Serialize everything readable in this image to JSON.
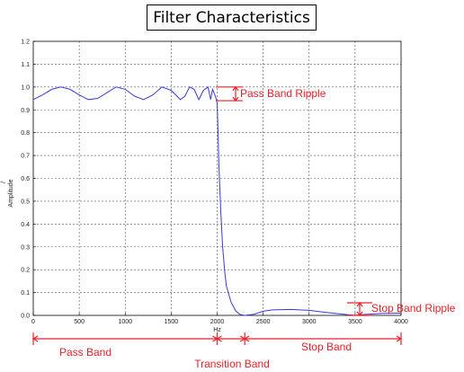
{
  "chart_data": {
    "type": "line",
    "title": "Filter Characteristics",
    "xlabel": "Hz",
    "ylabel": "Amplitude",
    "ylabel_symbol": "/",
    "xlim": [
      0,
      4000
    ],
    "ylim": [
      0,
      1.2
    ],
    "x_ticks": [
      0,
      500,
      1000,
      1500,
      2000,
      2500,
      3000,
      3500,
      4000
    ],
    "y_ticks": [
      "0.0",
      "0.1",
      "0.2",
      "0.3",
      "0.4",
      "0.5",
      "0.6",
      "0.7",
      "0.8",
      "0.9",
      "1.0",
      "1.1",
      "1.2"
    ],
    "grid": true,
    "line_color": "#3b3bd6",
    "annotation_color": "#e8202a",
    "series": [
      {
        "x": [
          0,
          100,
          200,
          300,
          400,
          500,
          600,
          700,
          800,
          900,
          1000,
          1100,
          1200,
          1300,
          1400,
          1500,
          1600,
          1650,
          1700,
          1750,
          1800,
          1850,
          1900,
          1930,
          1950,
          1980,
          2000,
          2010,
          2020,
          2040,
          2060,
          2080,
          2100,
          2150,
          2200,
          2250,
          2300,
          2400,
          2500,
          2600,
          2800,
          3000,
          3200,
          3400,
          3500,
          3600,
          3800,
          4000
        ],
        "y": [
          0.945,
          0.965,
          0.99,
          1.0,
          0.99,
          0.965,
          0.945,
          0.95,
          0.975,
          1.0,
          0.99,
          0.96,
          0.945,
          0.965,
          1.0,
          0.985,
          0.945,
          0.96,
          1.0,
          0.99,
          0.945,
          0.985,
          1.0,
          0.945,
          0.99,
          0.96,
          0.93,
          0.8,
          0.65,
          0.45,
          0.3,
          0.2,
          0.13,
          0.06,
          0.02,
          0.004,
          0.0,
          0.005,
          0.018,
          0.024,
          0.026,
          0.022,
          0.012,
          0.004,
          0.0,
          0.004,
          0.009,
          0.01
        ]
      }
    ],
    "annotations": {
      "pass_band_ripple": "Pass Band Ripple",
      "stop_band_ripple": "Stop Band Ripple",
      "pass_band": "Pass Band",
      "transition_band": "Transition Band",
      "stop_band": "Stop Band"
    }
  }
}
